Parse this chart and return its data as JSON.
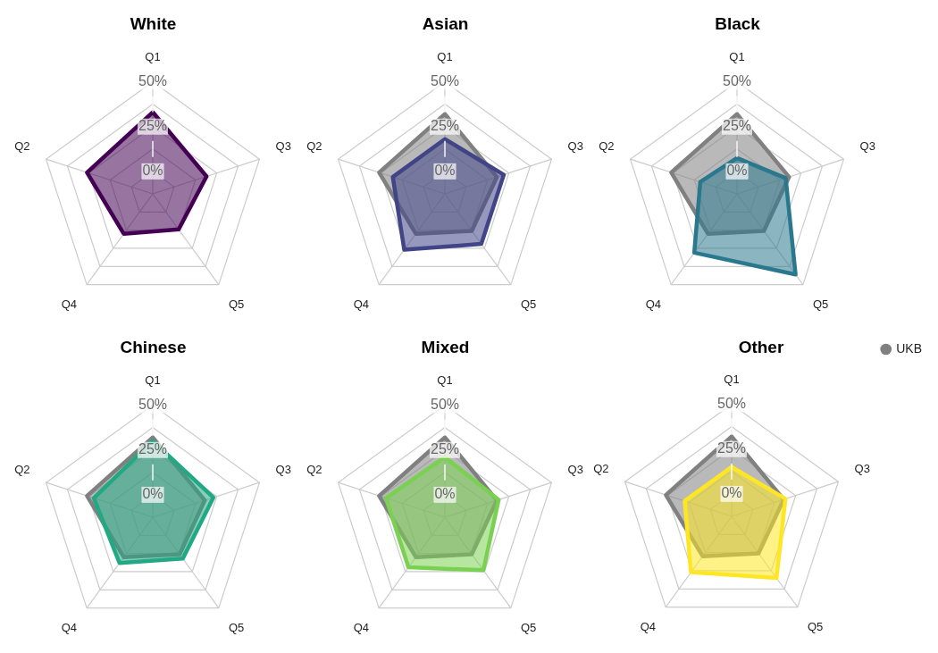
{
  "chart_data": [
    {
      "type": "radar",
      "title": "White",
      "categories": [
        "Q1",
        "Q3",
        "Q5",
        "Q4",
        "Q2"
      ],
      "ylim": [
        -12.5,
        50
      ],
      "yticks": [
        {
          "value": 0,
          "label": "0%"
        },
        {
          "value": 25,
          "label": "25%"
        },
        {
          "value": 50,
          "label": "50%"
        }
      ],
      "grid": true,
      "legend": false,
      "series": [
        {
          "color": "#440154",
          "values": [
            33,
            19,
            12,
            15,
            26
          ]
        }
      ]
    },
    {
      "type": "radar",
      "title": "Asian",
      "categories": [
        "Q1",
        "Q3",
        "Q5",
        "Q4",
        "Q2"
      ],
      "ylim": [
        -12.5,
        50
      ],
      "yticks": [
        {
          "value": 0,
          "label": "0%"
        },
        {
          "value": 25,
          "label": "25%"
        },
        {
          "value": 50,
          "label": "50%"
        }
      ],
      "grid": true,
      "legend": false,
      "series": [
        {
          "color": "#414487",
          "values": [
            18,
            22,
            22,
            26,
            18
          ]
        },
        {
          "color": "#808080",
          "values": [
            32,
            18,
            13,
            15,
            26
          ]
        }
      ]
    },
    {
      "type": "radar",
      "title": "Black",
      "categories": [
        "Q1",
        "Q3",
        "Q5",
        "Q4",
        "Q2"
      ],
      "ylim": [
        -12.5,
        50
      ],
      "yticks": [
        {
          "value": 0,
          "label": "0%"
        },
        {
          "value": 25,
          "label": "25%"
        },
        {
          "value": 50,
          "label": "50%"
        }
      ],
      "grid": true,
      "legend": false,
      "series": [
        {
          "color": "#2a788e",
          "values": [
            7.5,
            16,
            43,
            28,
            9
          ]
        },
        {
          "color": "#808080",
          "values": [
            32,
            18,
            13,
            15,
            26
          ]
        }
      ]
    },
    {
      "type": "radar",
      "title": "Chinese",
      "categories": [
        "Q1",
        "Q3",
        "Q5",
        "Q4",
        "Q2"
      ],
      "ylim": [
        -12.5,
        50
      ],
      "yticks": [
        {
          "value": 0,
          "label": "0%"
        },
        {
          "value": 25,
          "label": "25%"
        },
        {
          "value": 50,
          "label": "50%"
        }
      ],
      "grid": true,
      "legend": false,
      "series": [
        {
          "color": "#22a884",
          "values": [
            30,
            23,
            16,
            19,
            22
          ]
        },
        {
          "color": "#808080",
          "values": [
            32,
            18,
            13,
            15,
            26
          ]
        }
      ]
    },
    {
      "type": "radar",
      "title": "Mixed",
      "categories": [
        "Q1",
        "Q3",
        "Q5",
        "Q4",
        "Q2"
      ],
      "ylim": [
        -12.5,
        50
      ],
      "yticks": [
        {
          "value": 0,
          "label": "0%"
        },
        {
          "value": 25,
          "label": "25%"
        },
        {
          "value": 50,
          "label": "50%"
        }
      ],
      "grid": true,
      "legend": false,
      "series": [
        {
          "color": "#7ad151",
          "values": [
            21,
            19,
            24,
            22,
            22
          ]
        },
        {
          "color": "#808080",
          "values": [
            32,
            18,
            13,
            15,
            26
          ]
        }
      ]
    },
    {
      "type": "radar",
      "title": "Other",
      "categories": [
        "Q1",
        "Q3",
        "Q5",
        "Q4",
        "Q2"
      ],
      "ylim": [
        -12.5,
        50
      ],
      "yticks": [
        {
          "value": 0,
          "label": "0%"
        },
        {
          "value": 25,
          "label": "25%"
        },
        {
          "value": 50,
          "label": "50%"
        }
      ],
      "grid": true,
      "legend": "right",
      "series": [
        {
          "color": "#fde725",
          "values": [
            15,
            19,
            30,
            26,
            15
          ]
        },
        {
          "name": "UKB",
          "color": "#808080",
          "values": [
            32,
            18,
            13,
            15,
            26
          ]
        }
      ]
    }
  ]
}
